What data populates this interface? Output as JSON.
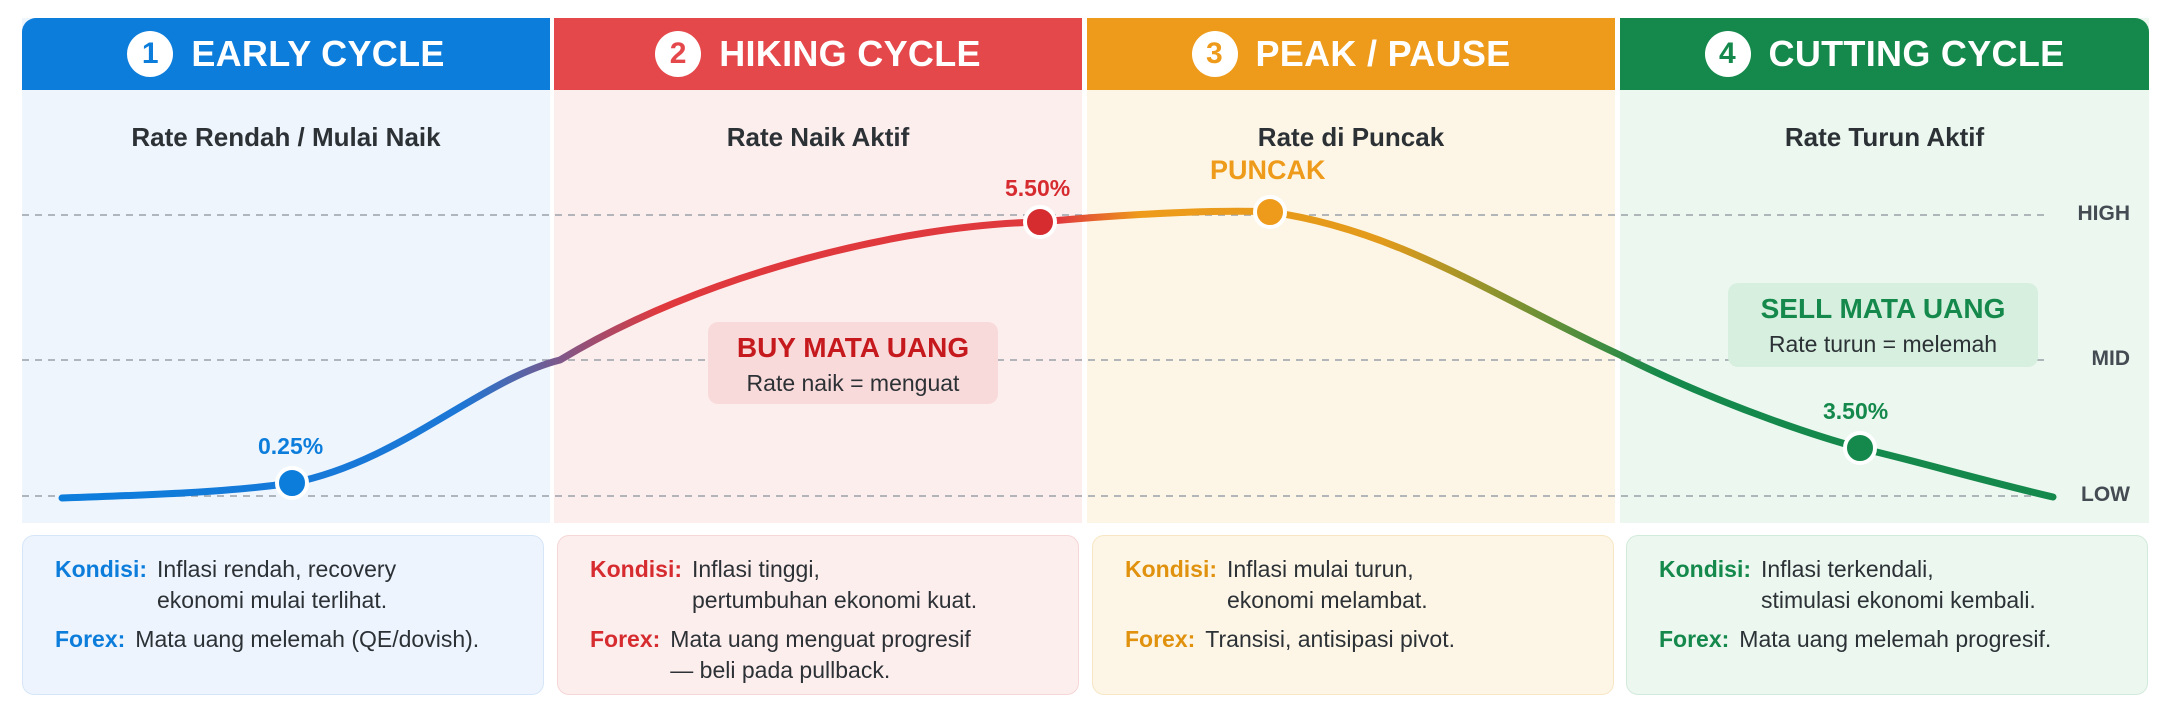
{
  "phases": [
    {
      "number": "1",
      "title": "EARLY CYCLE",
      "subtitle": "Rate Rendah / Mulai Naik",
      "color": "#0d7ddc",
      "kondisi_label": "Kondisi:",
      "kondisi_text": "Inflasi rendah, recovery\nekonomi mulai terlihat.",
      "forex_label": "Forex:",
      "forex_text": "Mata uang melemah (QE/dovish)."
    },
    {
      "number": "2",
      "title": "HIKING CYCLE",
      "subtitle": "Rate Naik Aktif",
      "color": "#e5484b",
      "kondisi_label": "Kondisi:",
      "kondisi_text": "Inflasi tinggi,\npertumbuhan ekonomi kuat.",
      "forex_label": "Forex:",
      "forex_text": "Mata uang menguat progresif\n— beli pada pullback."
    },
    {
      "number": "3",
      "title": "PEAK / PAUSE",
      "subtitle": "Rate di Puncak",
      "color": "#ee9b1b",
      "kondisi_label": "Kondisi:",
      "kondisi_text": "Inflasi mulai turun,\nekonomi melambat.",
      "forex_label": "Forex:",
      "forex_text": "Transisi, antisipasi pivot."
    },
    {
      "number": "4",
      "title": "CUTTING CYCLE",
      "subtitle": "Rate Turun Aktif",
      "color": "#14894b",
      "kondisi_label": "Kondisi:",
      "kondisi_text": "Inflasi terkendali,\nstimulasi ekonomi kembali.",
      "forex_label": "Forex:",
      "forex_text": "Mata uang melemah progresif."
    }
  ],
  "levels": {
    "high": "HIGH",
    "mid": "MID",
    "low": "LOW"
  },
  "points": [
    {
      "label": "0.25%",
      "color": "#0d7ddc"
    },
    {
      "label": "5.50%",
      "color": "#d62b2f"
    },
    {
      "label": "PUNCAK",
      "color": "#ee9b1b"
    },
    {
      "label": "3.50%",
      "color": "#14894b"
    }
  ],
  "callouts": {
    "buy": {
      "title": "BUY MATA UANG",
      "text": "Rate naik = menguat"
    },
    "sell": {
      "title": "SELL MATA UANG",
      "text": "Rate turun = melemah"
    }
  }
}
